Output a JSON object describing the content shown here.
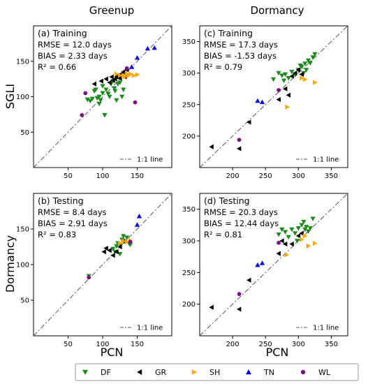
{
  "figure": {
    "col_titles": [
      "Greenup",
      "Dormancy"
    ],
    "row_labels": [
      "SGLI",
      "Dormancy"
    ],
    "xlabel": "PCN",
    "line_label": "1:1 line"
  },
  "legend": {
    "entries": [
      {
        "key": "DF",
        "label": "DF",
        "color": "#1a8a1a",
        "marker": "triangle-down"
      },
      {
        "key": "GR",
        "label": "GR",
        "color": "#000000",
        "marker": "triangle-left"
      },
      {
        "key": "SH",
        "label": "SH",
        "color": "#ffa500",
        "marker": "triangle-right"
      },
      {
        "key": "TN",
        "label": "TN",
        "color": "#0000ff",
        "marker": "triangle-up"
      },
      {
        "key": "WL",
        "label": "WL",
        "color": "#7b0f85",
        "marker": "circle"
      }
    ]
  },
  "chart_data": [
    {
      "type": "scatter",
      "title": "(a) Training",
      "stats": [
        "RMSE = 12.0 days",
        "BIAS = 2.33 days",
        "R² = 0.66"
      ],
      "xlim": [
        0,
        200
      ],
      "ylim": [
        0,
        200
      ],
      "xticks": [
        50,
        100,
        150
      ],
      "yticks": [
        50,
        100,
        150
      ],
      "series": [
        {
          "key": "DF",
          "points": [
            [
              78,
              96
            ],
            [
              82,
              94
            ],
            [
              85,
              97
            ],
            [
              88,
              108
            ],
            [
              90,
              110
            ],
            [
              92,
              98
            ],
            [
              95,
              100
            ],
            [
              97,
              95
            ],
            [
              100,
              105
            ],
            [
              100,
              115
            ],
            [
              103,
              74
            ],
            [
              105,
              110
            ],
            [
              108,
              104
            ],
            [
              110,
              100
            ],
            [
              112,
              118
            ],
            [
              115,
              122
            ],
            [
              117,
              112
            ],
            [
              118,
              108
            ],
            [
              120,
              95
            ],
            [
              122,
              118
            ],
            [
              125,
              120
            ],
            [
              128,
              100
            ],
            [
              130,
              110
            ],
            [
              95,
              90
            ]
          ]
        },
        {
          "key": "GR",
          "points": [
            [
              88,
              118
            ],
            [
              98,
              122
            ],
            [
              105,
              125
            ],
            [
              110,
              120
            ],
            [
              113,
              128
            ],
            [
              115,
              123
            ],
            [
              118,
              125
            ],
            [
              120,
              128
            ],
            [
              122,
              130
            ],
            [
              125,
              126
            ],
            [
              127,
              132
            ],
            [
              130,
              135
            ],
            [
              132,
              128
            ],
            [
              135,
              138
            ]
          ]
        },
        {
          "key": "SH",
          "points": [
            [
              120,
              132
            ],
            [
              125,
              130
            ],
            [
              130,
              130
            ],
            [
              132,
              128
            ],
            [
              135,
              132
            ],
            [
              138,
              130
            ],
            [
              140,
              132
            ],
            [
              145,
              130
            ],
            [
              150,
              131
            ]
          ]
        },
        {
          "key": "TN",
          "points": [
            [
              142,
              142
            ],
            [
              150,
              155
            ],
            [
              165,
              168
            ],
            [
              175,
              169
            ]
          ]
        },
        {
          "key": "WL",
          "points": [
            [
              70,
              74
            ],
            [
              75,
              105
            ],
            [
              135,
              140
            ],
            [
              147,
              92
            ]
          ]
        }
      ]
    },
    {
      "type": "scatter",
      "title": "(c) Training",
      "stats": [
        "RMSE = 17.3 days",
        "BIAS = -1.53 days",
        "R² = 0.79"
      ],
      "xlim": [
        150,
        375
      ],
      "ylim": [
        150,
        375
      ],
      "xticks": [
        200,
        250,
        300,
        350
      ],
      "yticks": [
        200,
        250,
        300,
        350
      ],
      "series": [
        {
          "key": "DF",
          "points": [
            [
              262,
              290
            ],
            [
              270,
              300
            ],
            [
              275,
              296
            ],
            [
              278,
              288
            ],
            [
              280,
              298
            ],
            [
              285,
              292
            ],
            [
              290,
              302
            ],
            [
              295,
              297
            ],
            [
              300,
              305
            ],
            [
              303,
              312
            ],
            [
              305,
              310
            ],
            [
              308,
              300
            ],
            [
              310,
              315
            ],
            [
              312,
              305
            ],
            [
              315,
              320
            ],
            [
              318,
              316
            ],
            [
              322,
              325
            ],
            [
              325,
              330
            ]
          ]
        },
        {
          "key": "GR",
          "points": [
            [
              168,
              183
            ],
            [
              210,
              180
            ],
            [
              225,
              222
            ],
            [
              270,
              258
            ],
            [
              280,
              275
            ],
            [
              285,
              265
            ],
            [
              290,
              295
            ],
            [
              295,
              300
            ],
            [
              300,
              305
            ],
            [
              305,
              298
            ]
          ]
        },
        {
          "key": "SH",
          "points": [
            [
              283,
              246
            ],
            [
              305,
              292
            ],
            [
              310,
              290
            ],
            [
              325,
              285
            ]
          ]
        },
        {
          "key": "TN",
          "points": [
            [
              238,
              256
            ],
            [
              245,
              254
            ]
          ]
        },
        {
          "key": "WL",
          "points": [
            [
              210,
              194
            ],
            [
              270,
              273
            ]
          ]
        }
      ]
    },
    {
      "type": "scatter",
      "title": "(b) Testing",
      "stats": [
        "RMSE = 8.4 days",
        "BIAS = 2.91 days",
        "R² = 0.83"
      ],
      "xlim": [
        0,
        200
      ],
      "ylim": [
        0,
        200
      ],
      "xticks": [
        50,
        100,
        150
      ],
      "yticks": [
        50,
        100,
        150
      ],
      "series": [
        {
          "key": "DF",
          "points": [
            [
              80,
              84
            ],
            [
              115,
              122
            ],
            [
              118,
              118
            ],
            [
              120,
              126
            ],
            [
              122,
              130
            ],
            [
              125,
              128
            ],
            [
              128,
              135
            ],
            [
              130,
              140
            ],
            [
              132,
              132
            ],
            [
              135,
              138
            ],
            [
              138,
              130
            ],
            [
              140,
              128
            ],
            [
              125,
              115
            ]
          ]
        },
        {
          "key": "GR",
          "points": [
            [
              102,
              118
            ],
            [
              105,
              123
            ],
            [
              110,
              120
            ],
            [
              115,
              113
            ],
            [
              120,
              118
            ],
            [
              125,
              125
            ],
            [
              130,
              133
            ]
          ]
        },
        {
          "key": "SH",
          "points": [
            [
              125,
              130
            ],
            [
              130,
              133
            ],
            [
              135,
              132
            ],
            [
              140,
              134
            ]
          ]
        },
        {
          "key": "TN",
          "points": [
            [
              150,
              156
            ],
            [
              153,
              168
            ]
          ]
        },
        {
          "key": "WL",
          "points": [
            [
              80,
              82
            ],
            [
              140,
              132
            ]
          ]
        }
      ]
    },
    {
      "type": "scatter",
      "title": "(d) Testing",
      "stats": [
        "RMSE = 20.3 days",
        "BIAS = 12.44 days",
        "R² = 0.81"
      ],
      "xlim": [
        150,
        375
      ],
      "ylim": [
        150,
        375
      ],
      "xticks": [
        200,
        250,
        300,
        350
      ],
      "yticks": [
        200,
        250,
        300,
        350
      ],
      "series": [
        {
          "key": "DF",
          "points": [
            [
              270,
              310
            ],
            [
              275,
              318
            ],
            [
              280,
              314
            ],
            [
              285,
              306
            ],
            [
              290,
              318
            ],
            [
              295,
              312
            ],
            [
              300,
              320
            ],
            [
              305,
              325
            ],
            [
              308,
              330
            ],
            [
              310,
              318
            ],
            [
              312,
              322
            ],
            [
              315,
              315
            ],
            [
              318,
              320
            ],
            [
              322,
              335
            ],
            [
              298,
              300
            ]
          ]
        },
        {
          "key": "GR",
          "points": [
            [
              168,
              195
            ],
            [
              210,
              192
            ],
            [
              225,
              238
            ],
            [
              270,
              280
            ],
            [
              275,
              300
            ],
            [
              280,
              295
            ],
            [
              290,
              295
            ],
            [
              300,
              308
            ],
            [
              305,
              312
            ]
          ]
        },
        {
          "key": "SH",
          "points": [
            [
              282,
              278
            ],
            [
              305,
              302
            ],
            [
              310,
              308
            ],
            [
              315,
              292
            ],
            [
              325,
              296
            ]
          ]
        },
        {
          "key": "TN",
          "points": [
            [
              238,
              262
            ],
            [
              245,
              265
            ]
          ]
        },
        {
          "key": "WL",
          "points": [
            [
              210,
              216
            ],
            [
              270,
              297
            ]
          ]
        }
      ]
    }
  ]
}
